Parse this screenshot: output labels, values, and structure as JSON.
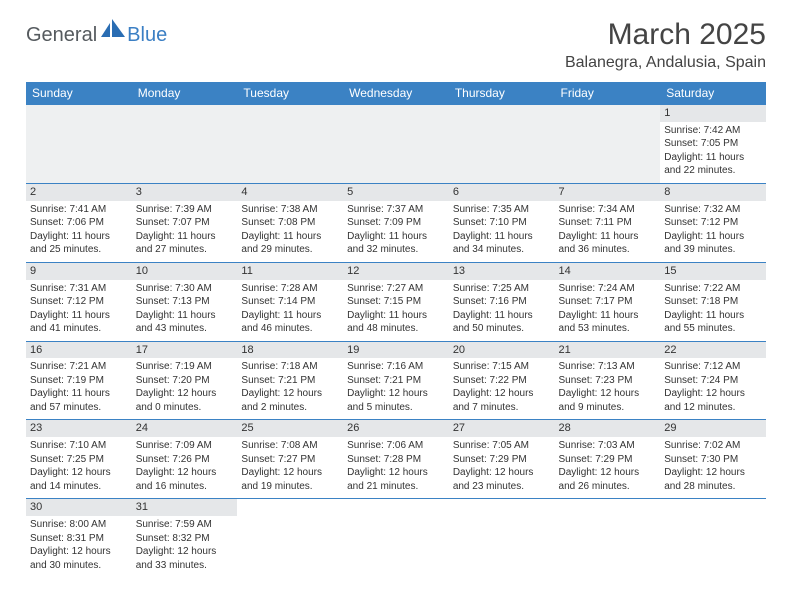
{
  "logo": {
    "part1": "General",
    "part2": "Blue"
  },
  "header": {
    "title": "March 2025",
    "location": "Balanegra, Andalusia, Spain"
  },
  "style": {
    "brand_blue": "#3b82c4",
    "gray_band": "#e5e7e9",
    "text_color": "#333333",
    "bg": "#ffffff"
  },
  "calendar": {
    "day_headers": [
      "Sunday",
      "Monday",
      "Tuesday",
      "Wednesday",
      "Thursday",
      "Friday",
      "Saturday"
    ],
    "weeks": [
      [
        null,
        null,
        null,
        null,
        null,
        null,
        {
          "d": "1",
          "sr": "Sunrise: 7:42 AM",
          "ss": "Sunset: 7:05 PM",
          "dl1": "Daylight: 11 hours",
          "dl2": "and 22 minutes."
        }
      ],
      [
        {
          "d": "2",
          "sr": "Sunrise: 7:41 AM",
          "ss": "Sunset: 7:06 PM",
          "dl1": "Daylight: 11 hours",
          "dl2": "and 25 minutes."
        },
        {
          "d": "3",
          "sr": "Sunrise: 7:39 AM",
          "ss": "Sunset: 7:07 PM",
          "dl1": "Daylight: 11 hours",
          "dl2": "and 27 minutes."
        },
        {
          "d": "4",
          "sr": "Sunrise: 7:38 AM",
          "ss": "Sunset: 7:08 PM",
          "dl1": "Daylight: 11 hours",
          "dl2": "and 29 minutes."
        },
        {
          "d": "5",
          "sr": "Sunrise: 7:37 AM",
          "ss": "Sunset: 7:09 PM",
          "dl1": "Daylight: 11 hours",
          "dl2": "and 32 minutes."
        },
        {
          "d": "6",
          "sr": "Sunrise: 7:35 AM",
          "ss": "Sunset: 7:10 PM",
          "dl1": "Daylight: 11 hours",
          "dl2": "and 34 minutes."
        },
        {
          "d": "7",
          "sr": "Sunrise: 7:34 AM",
          "ss": "Sunset: 7:11 PM",
          "dl1": "Daylight: 11 hours",
          "dl2": "and 36 minutes."
        },
        {
          "d": "8",
          "sr": "Sunrise: 7:32 AM",
          "ss": "Sunset: 7:12 PM",
          "dl1": "Daylight: 11 hours",
          "dl2": "and 39 minutes."
        }
      ],
      [
        {
          "d": "9",
          "sr": "Sunrise: 7:31 AM",
          "ss": "Sunset: 7:12 PM",
          "dl1": "Daylight: 11 hours",
          "dl2": "and 41 minutes."
        },
        {
          "d": "10",
          "sr": "Sunrise: 7:30 AM",
          "ss": "Sunset: 7:13 PM",
          "dl1": "Daylight: 11 hours",
          "dl2": "and 43 minutes."
        },
        {
          "d": "11",
          "sr": "Sunrise: 7:28 AM",
          "ss": "Sunset: 7:14 PM",
          "dl1": "Daylight: 11 hours",
          "dl2": "and 46 minutes."
        },
        {
          "d": "12",
          "sr": "Sunrise: 7:27 AM",
          "ss": "Sunset: 7:15 PM",
          "dl1": "Daylight: 11 hours",
          "dl2": "and 48 minutes."
        },
        {
          "d": "13",
          "sr": "Sunrise: 7:25 AM",
          "ss": "Sunset: 7:16 PM",
          "dl1": "Daylight: 11 hours",
          "dl2": "and 50 minutes."
        },
        {
          "d": "14",
          "sr": "Sunrise: 7:24 AM",
          "ss": "Sunset: 7:17 PM",
          "dl1": "Daylight: 11 hours",
          "dl2": "and 53 minutes."
        },
        {
          "d": "15",
          "sr": "Sunrise: 7:22 AM",
          "ss": "Sunset: 7:18 PM",
          "dl1": "Daylight: 11 hours",
          "dl2": "and 55 minutes."
        }
      ],
      [
        {
          "d": "16",
          "sr": "Sunrise: 7:21 AM",
          "ss": "Sunset: 7:19 PM",
          "dl1": "Daylight: 11 hours",
          "dl2": "and 57 minutes."
        },
        {
          "d": "17",
          "sr": "Sunrise: 7:19 AM",
          "ss": "Sunset: 7:20 PM",
          "dl1": "Daylight: 12 hours",
          "dl2": "and 0 minutes."
        },
        {
          "d": "18",
          "sr": "Sunrise: 7:18 AM",
          "ss": "Sunset: 7:21 PM",
          "dl1": "Daylight: 12 hours",
          "dl2": "and 2 minutes."
        },
        {
          "d": "19",
          "sr": "Sunrise: 7:16 AM",
          "ss": "Sunset: 7:21 PM",
          "dl1": "Daylight: 12 hours",
          "dl2": "and 5 minutes."
        },
        {
          "d": "20",
          "sr": "Sunrise: 7:15 AM",
          "ss": "Sunset: 7:22 PM",
          "dl1": "Daylight: 12 hours",
          "dl2": "and 7 minutes."
        },
        {
          "d": "21",
          "sr": "Sunrise: 7:13 AM",
          "ss": "Sunset: 7:23 PM",
          "dl1": "Daylight: 12 hours",
          "dl2": "and 9 minutes."
        },
        {
          "d": "22",
          "sr": "Sunrise: 7:12 AM",
          "ss": "Sunset: 7:24 PM",
          "dl1": "Daylight: 12 hours",
          "dl2": "and 12 minutes."
        }
      ],
      [
        {
          "d": "23",
          "sr": "Sunrise: 7:10 AM",
          "ss": "Sunset: 7:25 PM",
          "dl1": "Daylight: 12 hours",
          "dl2": "and 14 minutes."
        },
        {
          "d": "24",
          "sr": "Sunrise: 7:09 AM",
          "ss": "Sunset: 7:26 PM",
          "dl1": "Daylight: 12 hours",
          "dl2": "and 16 minutes."
        },
        {
          "d": "25",
          "sr": "Sunrise: 7:08 AM",
          "ss": "Sunset: 7:27 PM",
          "dl1": "Daylight: 12 hours",
          "dl2": "and 19 minutes."
        },
        {
          "d": "26",
          "sr": "Sunrise: 7:06 AM",
          "ss": "Sunset: 7:28 PM",
          "dl1": "Daylight: 12 hours",
          "dl2": "and 21 minutes."
        },
        {
          "d": "27",
          "sr": "Sunrise: 7:05 AM",
          "ss": "Sunset: 7:29 PM",
          "dl1": "Daylight: 12 hours",
          "dl2": "and 23 minutes."
        },
        {
          "d": "28",
          "sr": "Sunrise: 7:03 AM",
          "ss": "Sunset: 7:29 PM",
          "dl1": "Daylight: 12 hours",
          "dl2": "and 26 minutes."
        },
        {
          "d": "29",
          "sr": "Sunrise: 7:02 AM",
          "ss": "Sunset: 7:30 PM",
          "dl1": "Daylight: 12 hours",
          "dl2": "and 28 minutes."
        }
      ],
      [
        {
          "d": "30",
          "sr": "Sunrise: 8:00 AM",
          "ss": "Sunset: 8:31 PM",
          "dl1": "Daylight: 12 hours",
          "dl2": "and 30 minutes."
        },
        {
          "d": "31",
          "sr": "Sunrise: 7:59 AM",
          "ss": "Sunset: 8:32 PM",
          "dl1": "Daylight: 12 hours",
          "dl2": "and 33 minutes."
        },
        null,
        null,
        null,
        null,
        null
      ]
    ]
  }
}
